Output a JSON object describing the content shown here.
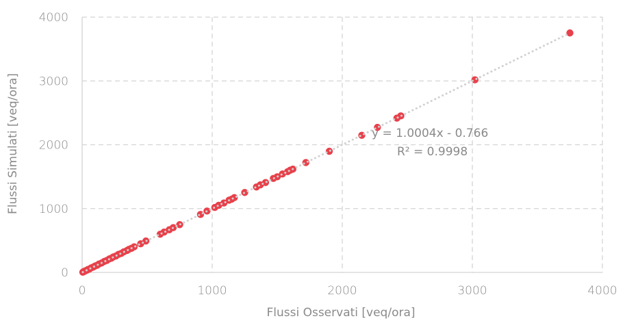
{
  "chart_data": {
    "type": "scatter",
    "xlabel": "Flussi Osservati [veq/ora]",
    "ylabel": "Flussi Simulati [veq/ora]",
    "xlim": [
      0,
      4000
    ],
    "ylim": [
      0,
      4000
    ],
    "x_ticks": [
      0,
      1000,
      2000,
      3000,
      4000
    ],
    "y_ticks": [
      0,
      1000,
      2000,
      3000,
      4000
    ],
    "x_tick_labels": [
      "0",
      "1000",
      "2000",
      "3000",
      "4000"
    ],
    "y_tick_labels": [
      "0",
      "1000",
      "2000",
      "3000",
      "4000"
    ],
    "grid": true,
    "marker_color": "#e8414b",
    "trendline_color": "#d0d0d0",
    "trendline": {
      "slope": 1.0004,
      "intercept": -0.766
    },
    "equation_text": "y = 1.0004x - 0.766",
    "r2_text": "R² = 0.9998",
    "points": [
      [
        5,
        3
      ],
      [
        12,
        14
      ],
      [
        18,
        16
      ],
      [
        25,
        26
      ],
      [
        35,
        33
      ],
      [
        45,
        46
      ],
      [
        55,
        52
      ],
      [
        70,
        72
      ],
      [
        85,
        83
      ],
      [
        100,
        101
      ],
      [
        115,
        112
      ],
      [
        130,
        132
      ],
      [
        150,
        148
      ],
      [
        170,
        172
      ],
      [
        190,
        188
      ],
      [
        210,
        212
      ],
      [
        225,
        223
      ],
      [
        240,
        243
      ],
      [
        260,
        258
      ],
      [
        280,
        283
      ],
      [
        300,
        297
      ],
      [
        320,
        322
      ],
      [
        345,
        344
      ],
      [
        360,
        362
      ],
      [
        380,
        378
      ],
      [
        400,
        402
      ],
      [
        450,
        448
      ],
      [
        490,
        492
      ],
      [
        600,
        598
      ],
      [
        630,
        632
      ],
      [
        670,
        668
      ],
      [
        700,
        702
      ],
      [
        750,
        748
      ],
      [
        910,
        908
      ],
      [
        960,
        962
      ],
      [
        1020,
        1018
      ],
      [
        1050,
        1052
      ],
      [
        1090,
        1088
      ],
      [
        1130,
        1132
      ],
      [
        1150,
        1148
      ],
      [
        1170,
        1172
      ],
      [
        1250,
        1252
      ],
      [
        1340,
        1338
      ],
      [
        1370,
        1372
      ],
      [
        1410,
        1408
      ],
      [
        1470,
        1472
      ],
      [
        1500,
        1498
      ],
      [
        1540,
        1542
      ],
      [
        1580,
        1578
      ],
      [
        1600,
        1602
      ],
      [
        1620,
        1618
      ],
      [
        1720,
        1722
      ],
      [
        1900,
        1898
      ],
      [
        2150,
        2148
      ],
      [
        2270,
        2272
      ],
      [
        2420,
        2418
      ],
      [
        2450,
        2452
      ],
      [
        3020,
        3018
      ],
      [
        3750,
        3752
      ]
    ]
  }
}
